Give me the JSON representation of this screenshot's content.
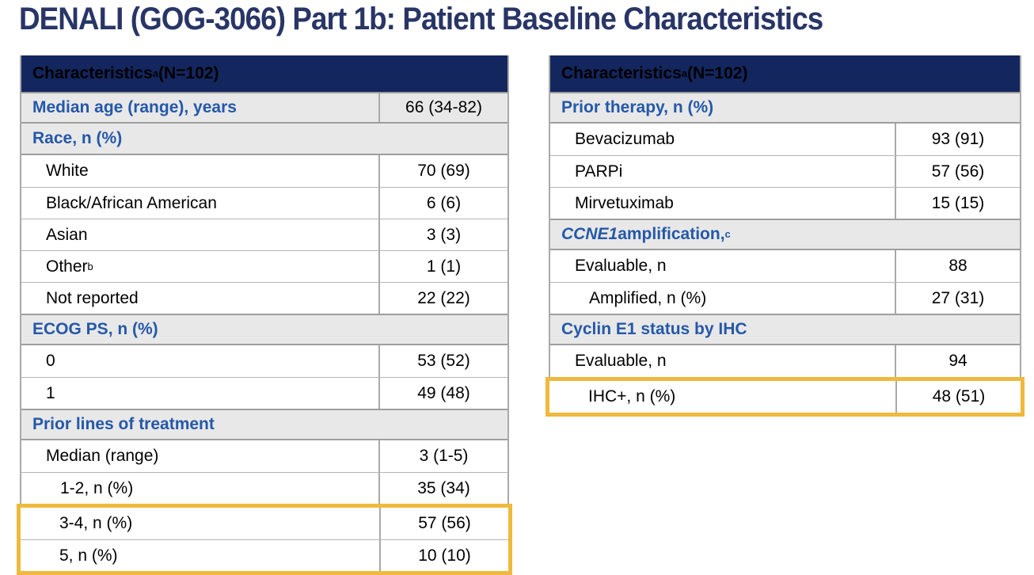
{
  "slide": {
    "title": "DENALI (GOG-3066) Part 1b: Patient Baseline Characteristics"
  },
  "colors": {
    "header_navy": "#13265E",
    "section_blue_text": "#2458A8",
    "section_gray_bg": "#E8E8E8",
    "highlight_gold": "#EFB93E",
    "title_navy": "#283566"
  },
  "tables": {
    "left": {
      "header": {
        "text": "Characteristics",
        "sup": "a",
        "suffix": " (N=102)"
      },
      "rows": [
        {
          "label": "Median age (range), years",
          "value": "66 (34-82)"
        },
        {
          "label": "Race, n (%)"
        },
        {
          "label": "White",
          "value": "70 (69)"
        },
        {
          "label": "Black/African American",
          "value": "6 (6)"
        },
        {
          "label": "Asian",
          "value": "3 (3)"
        },
        {
          "label": "Other",
          "sup": "b",
          "value": "1 (1)"
        },
        {
          "label": "Not reported",
          "value": "22 (22)"
        },
        {
          "label": "ECOG PS, n (%)"
        },
        {
          "label": "0",
          "value": "53 (52)"
        },
        {
          "label": "1",
          "value": "49 (48)"
        },
        {
          "label": "Prior lines of treatment"
        },
        {
          "label": "Median (range)",
          "value": "3 (1-5)"
        },
        {
          "label": "1-2, n (%)",
          "value": "35 (34)"
        },
        {
          "label": "3-4, n (%)",
          "value": "57 (56)"
        },
        {
          "label": "5, n (%)",
          "value": "10 (10)"
        }
      ]
    },
    "right": {
      "header": {
        "text": "Characteristics",
        "sup": "a",
        "suffix": " (N=102)"
      },
      "rows": [
        {
          "label": "Prior therapy, n (%)"
        },
        {
          "label": "Bevacizumab",
          "value": "93 (91)"
        },
        {
          "label": "PARPi",
          "value": "57 (56)"
        },
        {
          "label": "Mirvetuximab",
          "value": "15 (15)"
        },
        {
          "italic": "CCNE1",
          "label": " amplification,",
          "sup": "c"
        },
        {
          "label": "Evaluable, n",
          "value": "88"
        },
        {
          "label": "Amplified, n (%)",
          "value": "27 (31)"
        },
        {
          "label": "Cyclin E1 status by IHC"
        },
        {
          "label": "Evaluable, n",
          "value": "94"
        },
        {
          "label": "IHC+, n (%)",
          "value": "48 (51)"
        }
      ]
    }
  }
}
